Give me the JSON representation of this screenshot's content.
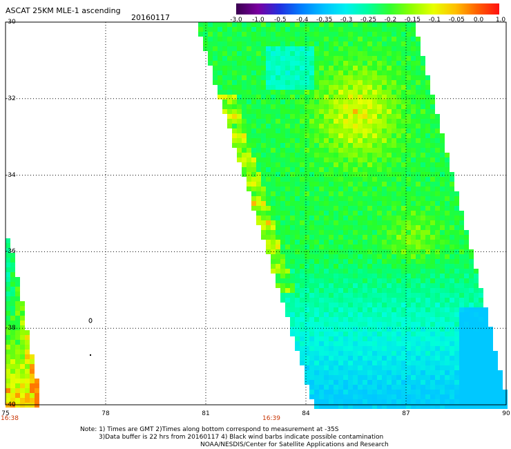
{
  "title": "ASCAT 25KM MLE-1 ascending",
  "date": "20160117",
  "colorbar": {
    "labels": [
      "-3.0",
      "-1.0",
      "-0.5",
      "-0.4",
      "-0.35",
      "-0.3",
      "-0.25",
      "-0.2",
      "-0.15",
      "-0.1",
      "-0.05",
      "0.0",
      "1.0"
    ],
    "colors": [
      "#3a0050",
      "#7a00a0",
      "#2030e0",
      "#0080ff",
      "#00c0ff",
      "#00f0f0",
      "#00ffa0",
      "#30ff30",
      "#90ff00",
      "#e8ff00",
      "#ffc000",
      "#ff6000",
      "#ff1010"
    ]
  },
  "axes": {
    "lat_ticks": [
      "-30",
      "-32",
      "-34",
      "-36",
      "-38",
      "-40"
    ],
    "lon_ticks": [
      "75",
      "78",
      "81",
      "84",
      "87",
      "90"
    ]
  },
  "time_labels": [
    "16:38",
    "16:39"
  ],
  "notes": [
    "Note: 1) Times are GMT 2)Times along bottom correspond to measurement at -35S",
    "3)Data buffer is 22 hrs from 20160117 4) Black wind barbs indicate possible contamination",
    "NOAA/NESDIS/Center for Satellite Applications and Research"
  ]
}
